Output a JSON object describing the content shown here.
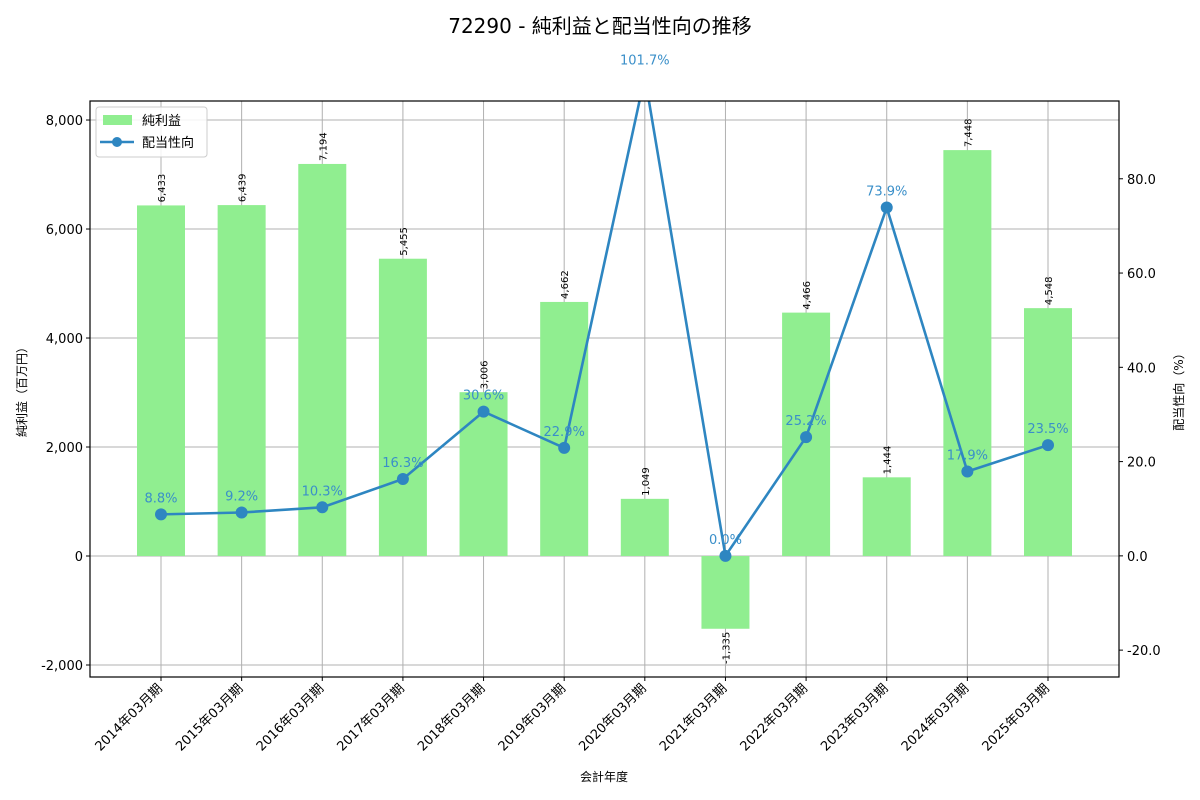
{
  "chart_data": {
    "type": "bar+line",
    "title": "72290 - 純利益と配当性向の推移",
    "xlabel": "会計年度",
    "ylabel_left": "純利益（百万円）",
    "ylabel_right": "配当性向（%）",
    "categories": [
      "2014年03月期",
      "2015年03月期",
      "2016年03月期",
      "2017年03月期",
      "2018年03月期",
      "2019年03月期",
      "2020年03月期",
      "2021年03月期",
      "2022年03月期",
      "2023年03月期",
      "2024年03月期",
      "2025年03月期"
    ],
    "series": [
      {
        "name": "純利益",
        "type": "bar",
        "axis": "left",
        "color": "#90ee90",
        "values": [
          6433,
          6439,
          7194,
          5455,
          3006,
          4662,
          1049,
          -1335,
          4466,
          1444,
          7448,
          4548
        ],
        "labels": [
          "6,433",
          "6,439",
          "7,194",
          "5,455",
          "3,006",
          "4,662",
          "1,049",
          "-1,335",
          "4,466",
          "1,444",
          "7,448",
          "4,548"
        ]
      },
      {
        "name": "配当性向",
        "type": "line",
        "axis": "right",
        "color": "#2e86c1",
        "values": [
          8.8,
          9.2,
          10.3,
          16.3,
          30.6,
          22.9,
          101.7,
          0.0,
          25.2,
          73.9,
          17.9,
          23.5
        ],
        "labels": [
          "8.8%",
          "9.2%",
          "10.3%",
          "16.3%",
          "30.6%",
          "22.9%",
          "101.7%",
          "0.0%",
          "25.2%",
          "73.9%",
          "17.9%",
          "23.5%"
        ]
      }
    ],
    "ylim_left": [
      -2220,
      8349
    ],
    "ylim_right": [
      -25.7,
      96.5
    ],
    "yticks_left": [
      -2000,
      0,
      2000,
      4000,
      6000,
      8000
    ],
    "yticks_left_labels": [
      "-2,000",
      "0",
      "2,000",
      "4,000",
      "6,000",
      "8,000"
    ],
    "yticks_right": [
      -20,
      0,
      20,
      40,
      60,
      80
    ],
    "yticks_right_labels": [
      "-20.0",
      "0.0",
      "20.0",
      "40.0",
      "60.0",
      "80.0"
    ],
    "grid": true,
    "legend_position": "upper left"
  }
}
